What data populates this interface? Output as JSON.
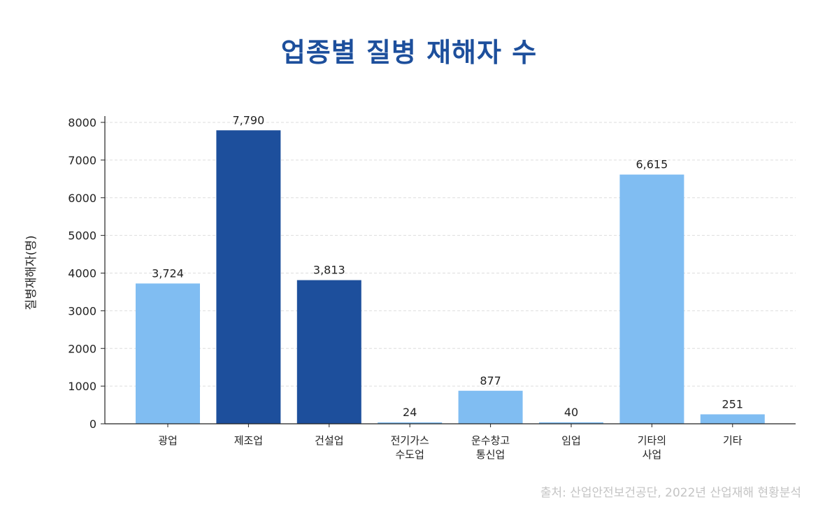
{
  "title": "업종별 질병 재해자 수",
  "source": "출처: 산업안전보건공단, 2022년 산업재해 현황분석",
  "colors": {
    "title": "#1d4f9c",
    "light_bar": "#80bdf2",
    "dark_bar": "#1d4f9c",
    "source": "#c4c4c4"
  },
  "chart_data": {
    "type": "bar",
    "title": "업종별 질병 재해자 수",
    "xlabel": "",
    "ylabel": "질병재해자(명)",
    "ylim": [
      0,
      8000
    ],
    "yticks": [
      0,
      1000,
      2000,
      3000,
      4000,
      5000,
      6000,
      7000,
      8000
    ],
    "grid": true,
    "categories": [
      [
        "광업"
      ],
      [
        "제조업"
      ],
      [
        "건설업"
      ],
      [
        "전기가스",
        "수도업"
      ],
      [
        "운수창고",
        "통신업"
      ],
      [
        "임업"
      ],
      [
        "기타의",
        "사업"
      ],
      [
        "기타"
      ]
    ],
    "values": [
      3724,
      7790,
      3813,
      24,
      877,
      40,
      6615,
      251
    ],
    "value_labels": [
      "3,724",
      "7,790",
      "3,813",
      "24",
      "877",
      "40",
      "6,615",
      "251"
    ],
    "highlighted": [
      false,
      true,
      true,
      false,
      false,
      false,
      false,
      false
    ]
  }
}
